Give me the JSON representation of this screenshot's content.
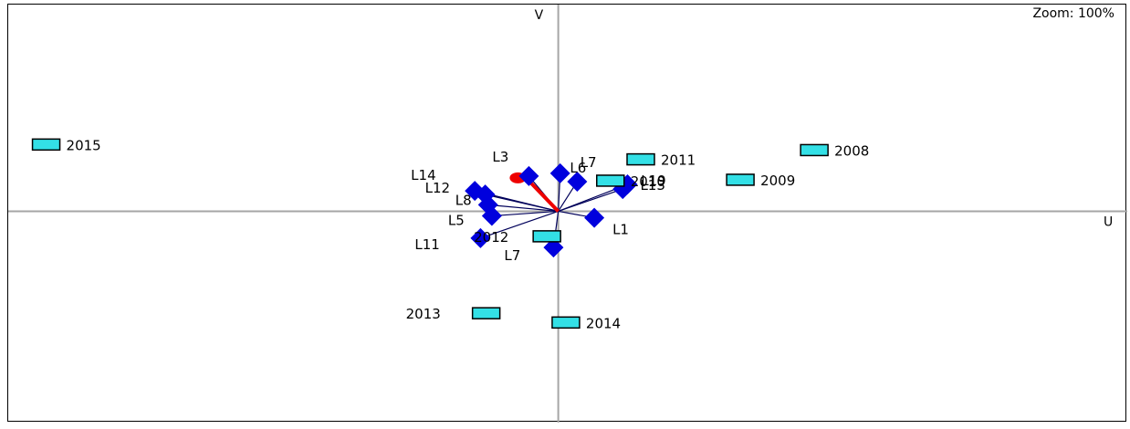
{
  "toolbar": {
    "zoom_label": "Zoom: 100%"
  },
  "chart_data": {
    "type": "scatter",
    "title": "",
    "xlabel": "U",
    "ylabel": "V",
    "xlim": [
      -5.8,
      6.0
    ],
    "ylim": [
      -2.28,
      2.23
    ],
    "grid": false,
    "marker_colors": {
      "year": "#33e0e6",
      "variable": "#0000dd",
      "vector": "#00005a",
      "highlight": "#ee0000"
    },
    "years": [
      {
        "label": "2008",
        "x": 2.7,
        "y": 0.66
      },
      {
        "label": "2009",
        "x": 1.92,
        "y": 0.34
      },
      {
        "label": "2010",
        "x": 0.55,
        "y": 0.33
      },
      {
        "label": "2011",
        "x": 0.87,
        "y": 0.56
      },
      {
        "label": "2012",
        "x": -0.12,
        "y": -0.27
      },
      {
        "label": "2013",
        "x": -0.76,
        "y": -1.1
      },
      {
        "label": "2014",
        "x": 0.08,
        "y": -1.2
      },
      {
        "label": "2015",
        "x": -5.4,
        "y": 0.72
      }
    ],
    "variables": [
      {
        "label": "L1",
        "x": 0.38,
        "y": -0.07
      },
      {
        "label": "L3",
        "x": -0.31,
        "y": 0.38
      },
      {
        "label": "L5",
        "x": -0.7,
        "y": -0.05
      },
      {
        "label": "L6",
        "x": 0.2,
        "y": 0.32
      },
      {
        "label": "L7",
        "x": 0.02,
        "y": 0.41
      },
      {
        "label": "L7",
        "x": -0.05,
        "y": -0.39
      },
      {
        "label": "L8",
        "x": -0.74,
        "y": 0.07
      },
      {
        "label": "L11",
        "x": -0.82,
        "y": -0.29
      },
      {
        "label": "L12",
        "x": -0.77,
        "y": 0.18
      },
      {
        "label": "L13",
        "x": 0.73,
        "y": 0.29
      },
      {
        "label": "L14",
        "x": -0.88,
        "y": 0.22
      },
      {
        "label": "L19",
        "x": 0.68,
        "y": 0.24
      }
    ]
  }
}
